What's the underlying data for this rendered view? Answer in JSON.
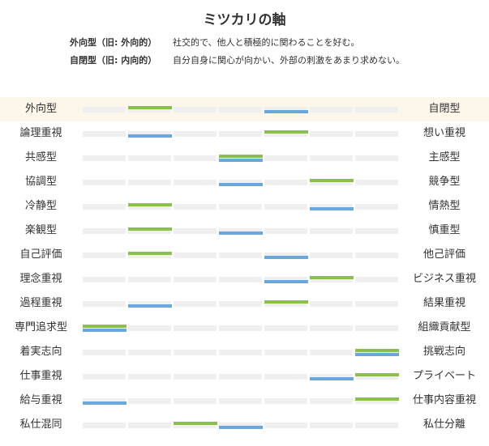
{
  "title": "ミツカリの軸",
  "definitions": [
    {
      "term": "外向型（旧: 外向的）",
      "desc": "社交的で、他人と積極的に関わることを好む。"
    },
    {
      "term": "自閉型（旧: 内向的）",
      "desc": "自分自身に関心が向かい、外部の刺激をあまり求めない。"
    }
  ],
  "colors": {
    "green_marker": "#8cc04c",
    "blue_marker": "#6aa7dd",
    "track": "#efefef",
    "highlight_row": "#fdf6ea"
  },
  "scale_steps": 7,
  "axes": [
    {
      "left": "外向型",
      "right": "自閉型",
      "green": 2,
      "blue": 5,
      "highlight": true
    },
    {
      "left": "論理重視",
      "right": "想い重視",
      "green": 5,
      "blue": 2
    },
    {
      "left": "共感型",
      "right": "主感型",
      "green": 4,
      "blue": 4
    },
    {
      "left": "協調型",
      "right": "競争型",
      "green": 6,
      "blue": 4
    },
    {
      "left": "冷静型",
      "right": "情熱型",
      "green": 2,
      "blue": 6
    },
    {
      "left": "楽観型",
      "right": "慎重型",
      "green": 2,
      "blue": 4
    },
    {
      "left": "自己評価",
      "right": "他己評価",
      "green": 2,
      "blue": 5
    },
    {
      "left": "理念重視",
      "right": "ビジネス重視",
      "green": 6,
      "blue": 5
    },
    {
      "left": "過程重視",
      "right": "結果重視",
      "green": 5,
      "blue": 2
    },
    {
      "left": "専門追求型",
      "right": "組織貢献型",
      "green": 1,
      "blue": 1
    },
    {
      "left": "着実志向",
      "right": "挑戦志向",
      "green": 7,
      "blue": 7
    },
    {
      "left": "仕事重視",
      "right": "プライベート",
      "green": 7,
      "blue": 6
    },
    {
      "left": "給与重視",
      "right": "仕事内容重視",
      "green": 7,
      "blue": 1
    },
    {
      "left": "私仕混同",
      "right": "私仕分離",
      "green": 3,
      "blue": 4
    }
  ]
}
